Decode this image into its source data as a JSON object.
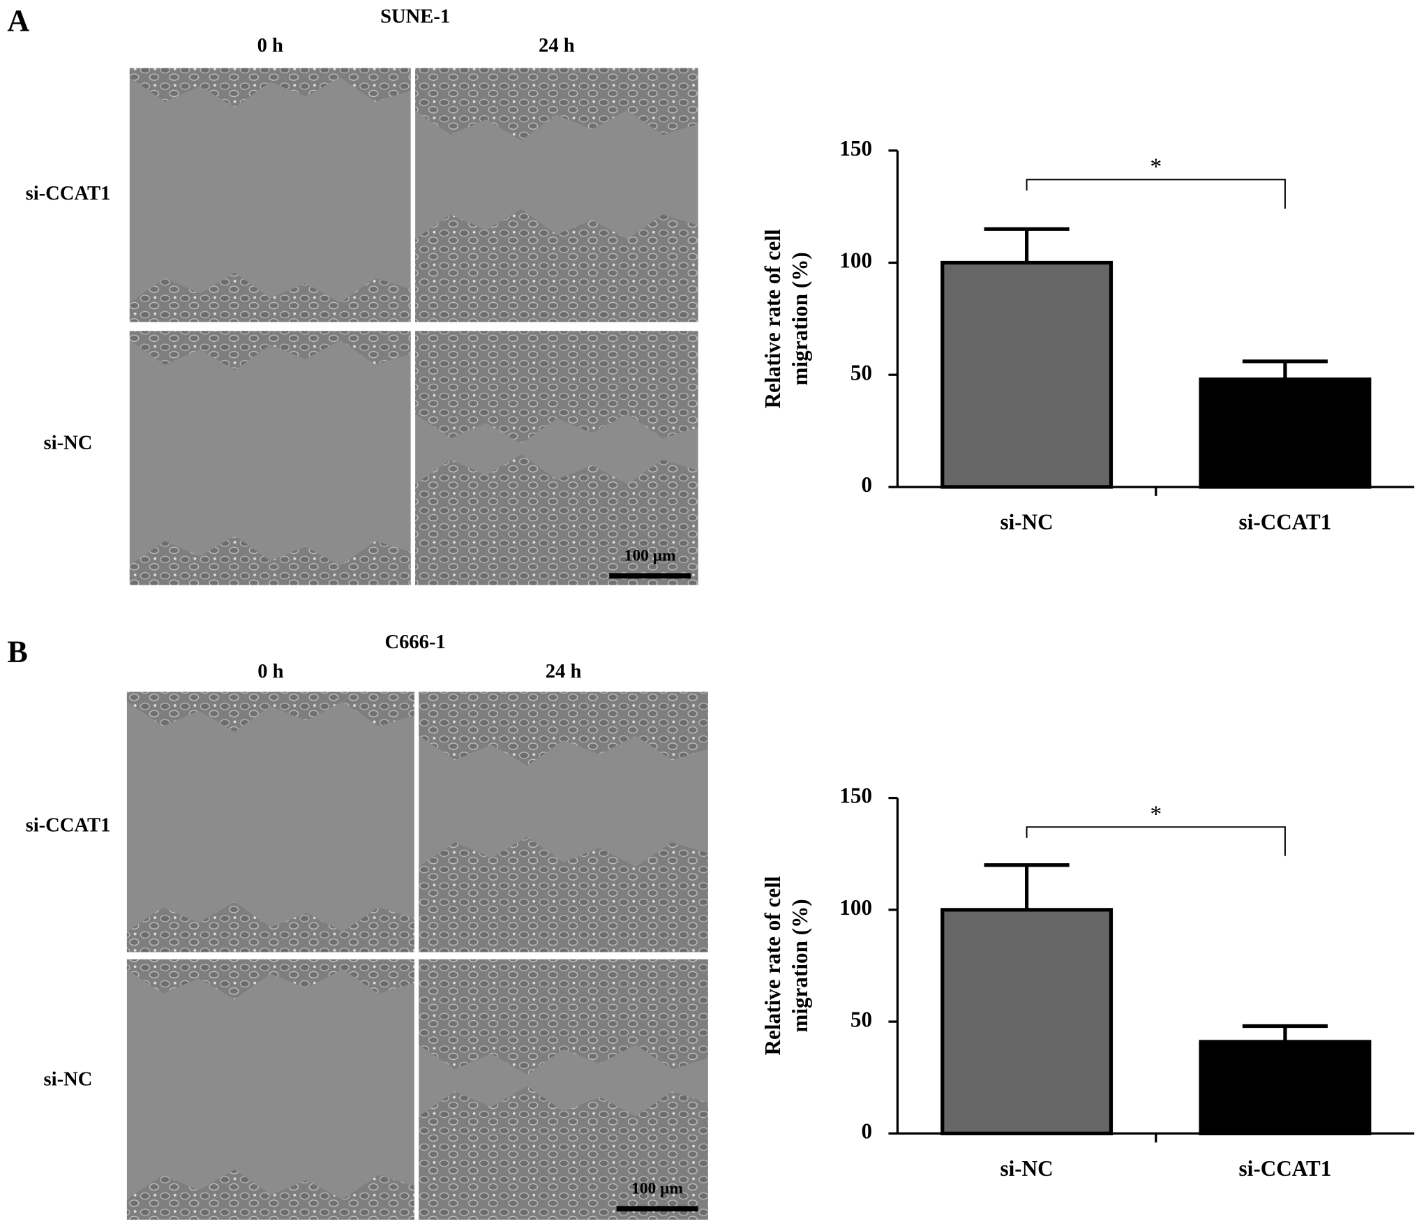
{
  "panels": [
    {
      "label": "A",
      "cell_line": "SUNE-1",
      "times": [
        "0 h",
        "24 h"
      ],
      "rows": [
        "si-CCAT1",
        "si-NC"
      ],
      "scale_bar": "100 µm"
    },
    {
      "label": "B",
      "cell_line": "C666-1",
      "times": [
        "0 h",
        "24 h"
      ],
      "rows": [
        "si-CCAT1",
        "si-NC"
      ],
      "scale_bar": "100 µm"
    }
  ],
  "chart_data": [
    {
      "type": "bar",
      "ylabel": [
        "Relative rate of cell",
        "migration (%)"
      ],
      "categories": [
        "si-NC",
        "si-CCAT1"
      ],
      "values": [
        100,
        48
      ],
      "errors": [
        15,
        8
      ],
      "colors": [
        "#666666",
        "#000000"
      ],
      "ylim": [
        0,
        150
      ],
      "yticks": [
        0,
        50,
        100,
        150
      ],
      "annotation": "*"
    },
    {
      "type": "bar",
      "ylabel": [
        "Relative rate of cell",
        "migration (%)"
      ],
      "categories": [
        "si-NC",
        "si-CCAT1"
      ],
      "values": [
        100,
        41
      ],
      "errors": [
        20,
        7
      ],
      "colors": [
        "#666666",
        "#000000"
      ],
      "ylim": [
        0,
        150
      ],
      "yticks": [
        0,
        50,
        100,
        150
      ],
      "annotation": "*"
    }
  ]
}
